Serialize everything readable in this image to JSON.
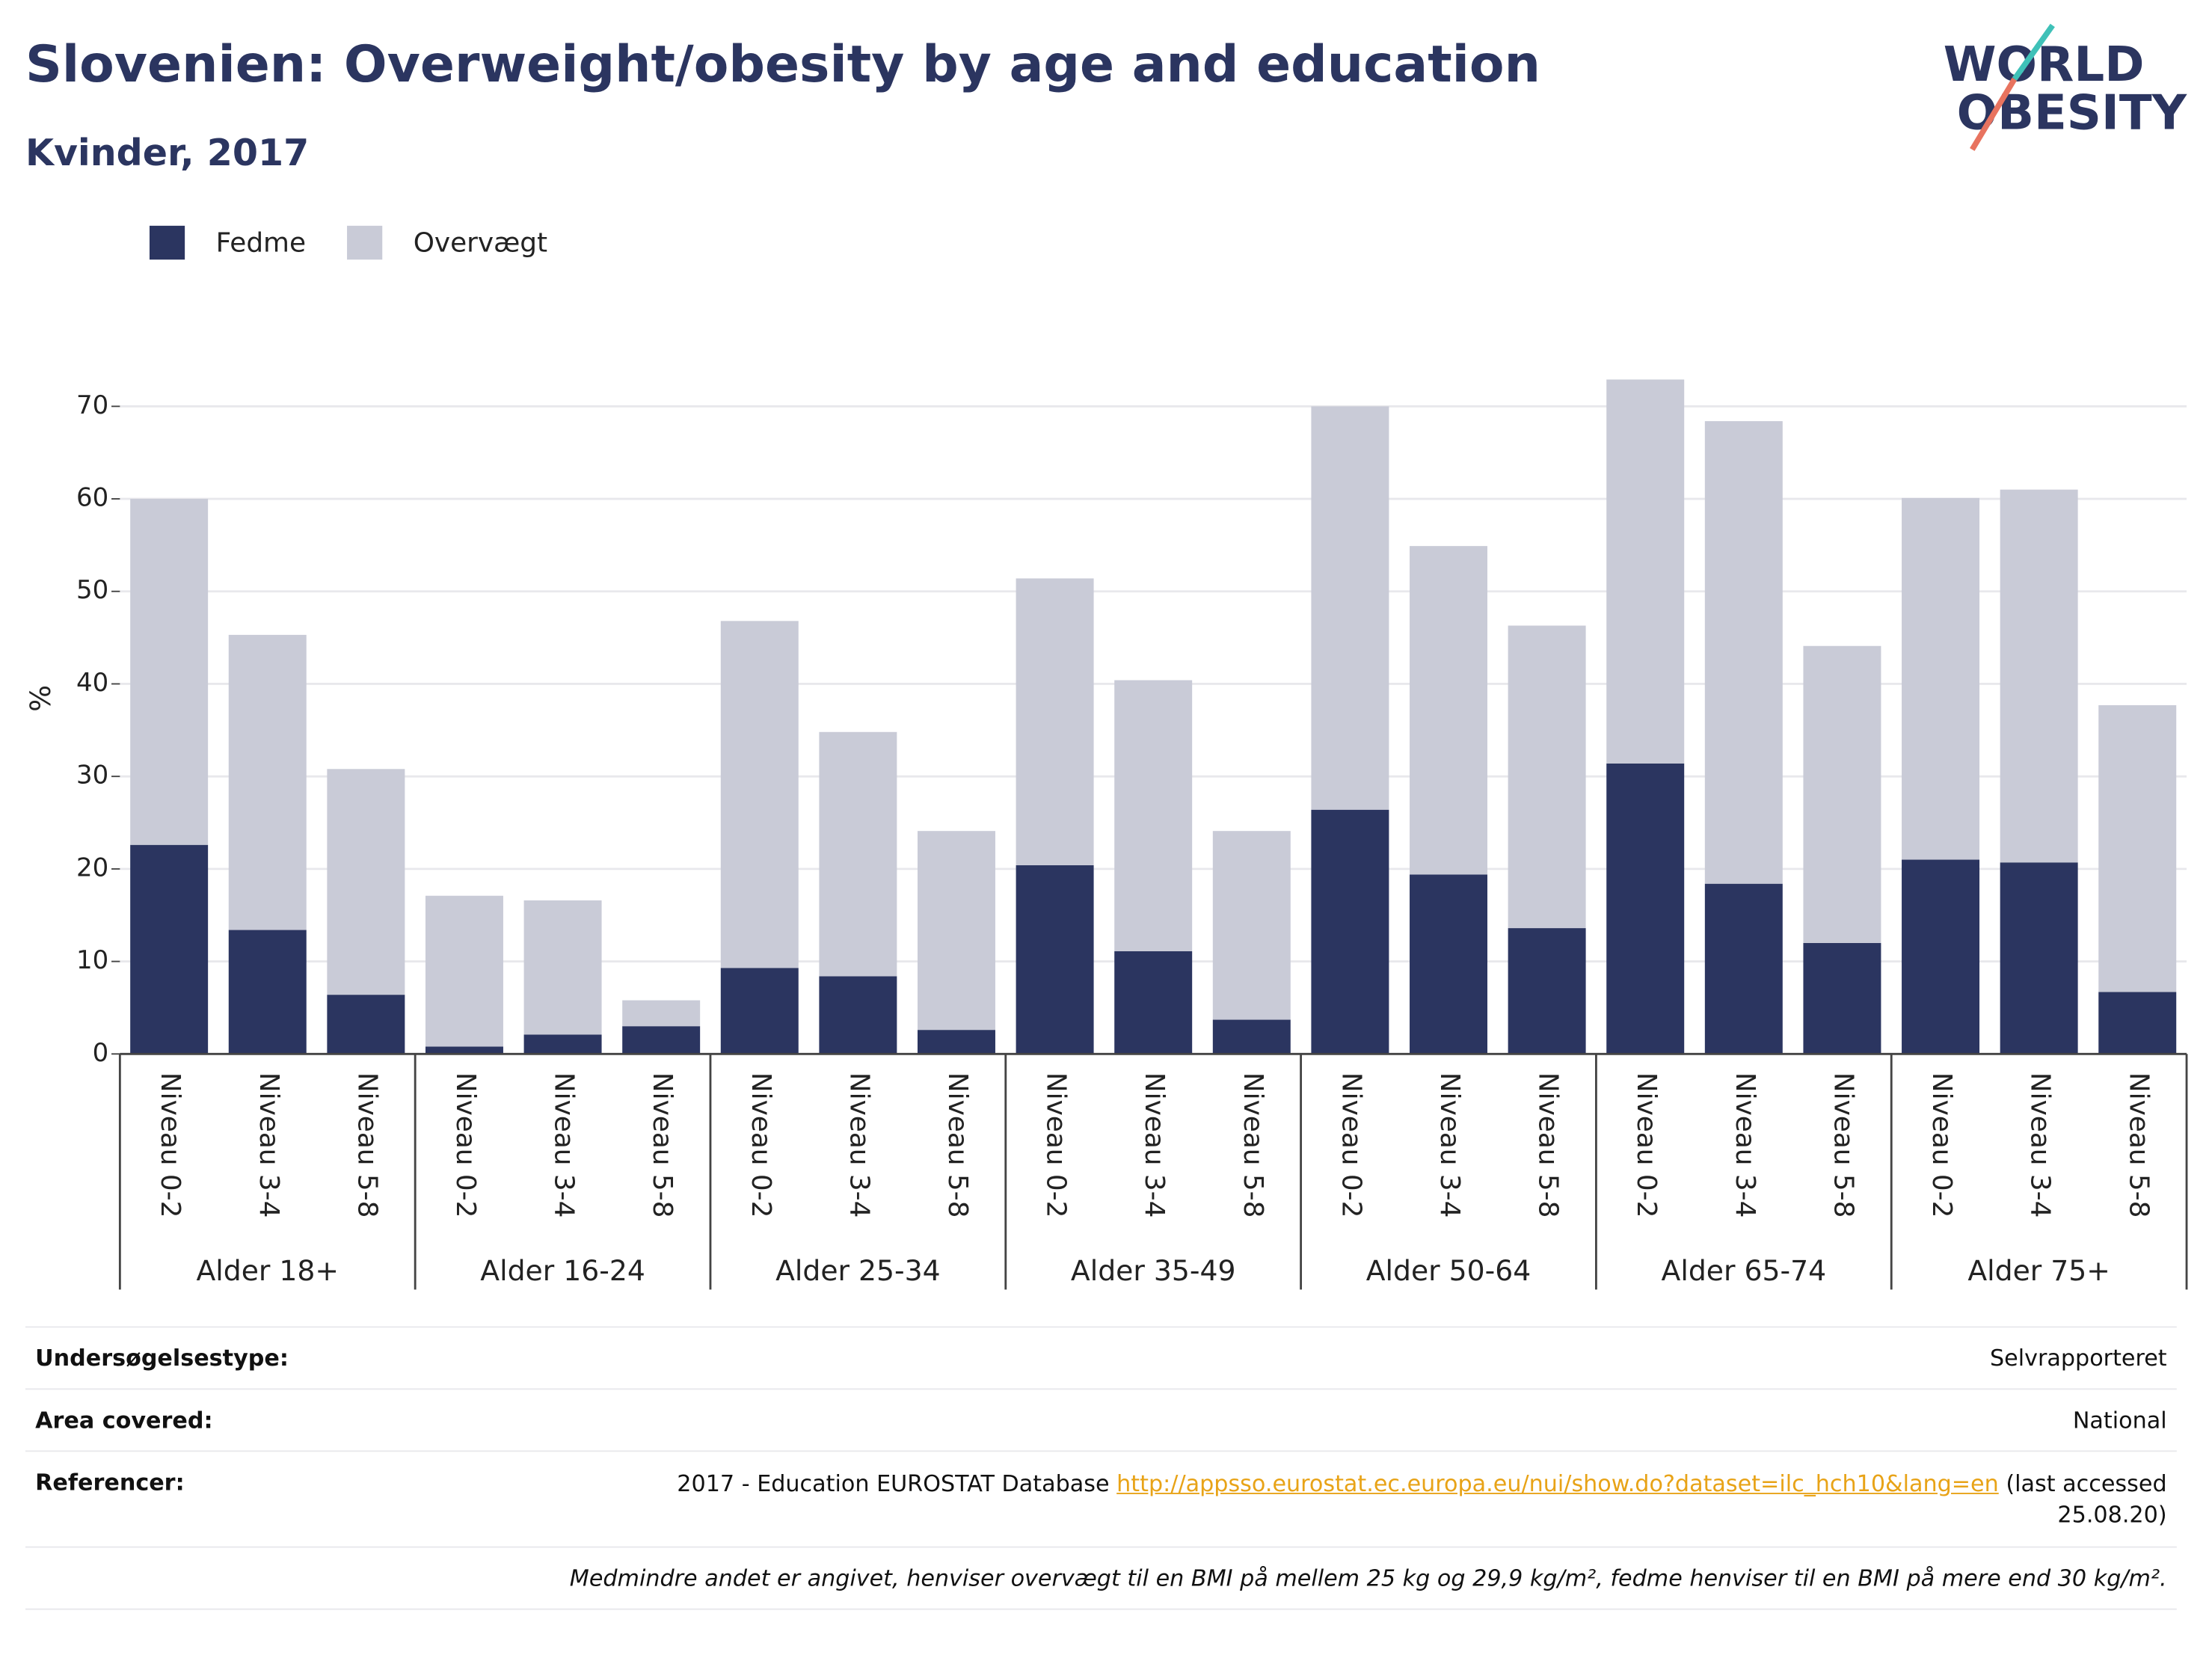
{
  "chart_data": {
    "type": "stacked_bar",
    "title": "Slovenien: Overweight/obesity by age and education",
    "subtitle": "Kvinder, 2017",
    "y_label": "%",
    "categories": [
      "Niveau 0-2",
      "Niveau 3-4",
      "Niveau 5-8",
      "Niveau 0-2",
      "Niveau 3-4",
      "Niveau 5-8",
      "Niveau 0-2",
      "Niveau 3-4",
      "Niveau 5-8",
      "Niveau 0-2",
      "Niveau 3-4",
      "Niveau 5-8",
      "Niveau 0-2",
      "Niveau 3-4",
      "Niveau 5-8",
      "Niveau 0-2",
      "Niveau 3-4",
      "Niveau 5-8",
      "Niveau 0-2",
      "Niveau 3-4",
      "Niveau 5-8"
    ],
    "groups": [
      "Alder 18+",
      "Alder 16-24",
      "Alder 25-34",
      "Alder 35-49",
      "Alder 50-64",
      "Alder 65-74",
      "Alder 75+"
    ],
    "series": [
      {
        "name": "Fedme",
        "color": "#2b3560",
        "values": [
          22.6,
          13.4,
          6.4,
          0.8,
          2.1,
          3.0,
          9.3,
          8.4,
          2.6,
          20.4,
          11.1,
          3.7,
          26.4,
          19.4,
          13.6,
          31.4,
          18.4,
          12.0,
          21.0,
          20.7,
          6.7
        ]
      },
      {
        "name": "Overvægt",
        "color": "#c9cbd7",
        "values": [
          37.4,
          31.9,
          24.4,
          16.3,
          14.5,
          2.8,
          37.5,
          26.4,
          21.5,
          31.0,
          29.3,
          20.4,
          43.6,
          35.5,
          32.7,
          41.5,
          50.0,
          32.1,
          39.1,
          40.3,
          31.0
        ]
      }
    ],
    "ylim": [
      0,
      70
    ],
    "yticks": [
      0,
      10,
      20,
      30,
      40,
      50,
      60,
      70
    ],
    "grid": true,
    "legend": "top-left"
  },
  "logo": {
    "line1": "WORLD",
    "line2": "OBESITY"
  },
  "footer": {
    "rows": [
      {
        "label": "Undersøgelsestype:",
        "value": "Selvrapporteret"
      },
      {
        "label": "Area covered:",
        "value": "National"
      }
    ],
    "reference": {
      "label": "Referencer:",
      "prefix": "2017 - Education EUROSTAT Database",
      "link": "http://appsso.eurostat.ec.europa.eu/nui/show.do?dataset=ilc_hch10&lang=en",
      "suffix": "(last accessed 25.08.20)"
    },
    "note": "Medmindre andet er angivet, henviser overvægt til en BMI på mellem 25 kg og 29,9 kg/m², fedme henviser til en BMI på mere end 30 kg/m²."
  }
}
